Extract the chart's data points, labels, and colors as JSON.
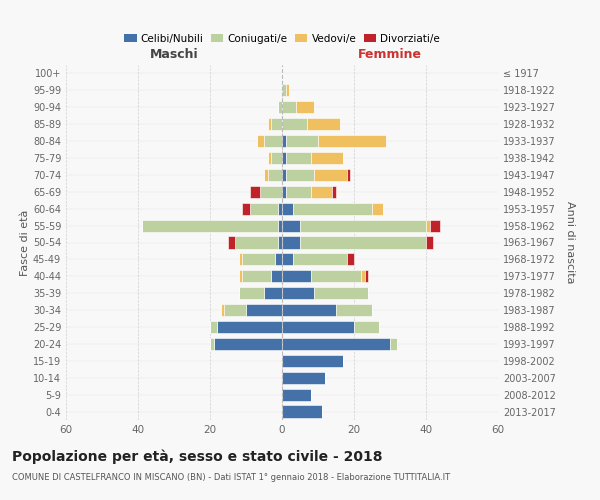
{
  "age_groups": [
    "0-4",
    "5-9",
    "10-14",
    "15-19",
    "20-24",
    "25-29",
    "30-34",
    "35-39",
    "40-44",
    "45-49",
    "50-54",
    "55-59",
    "60-64",
    "65-69",
    "70-74",
    "75-79",
    "80-84",
    "85-89",
    "90-94",
    "95-99",
    "100+"
  ],
  "birth_years": [
    "2013-2017",
    "2008-2012",
    "2003-2007",
    "1998-2002",
    "1993-1997",
    "1988-1992",
    "1983-1987",
    "1978-1982",
    "1973-1977",
    "1968-1972",
    "1963-1967",
    "1958-1962",
    "1953-1957",
    "1948-1952",
    "1943-1947",
    "1938-1942",
    "1933-1937",
    "1928-1932",
    "1923-1927",
    "1918-1922",
    "≤ 1917"
  ],
  "colors": {
    "celibi": "#4472a8",
    "coniugati": "#bdd0a0",
    "vedovi": "#f0c060",
    "divorziati": "#c0222a"
  },
  "males": {
    "celibi": [
      0,
      0,
      0,
      0,
      19,
      18,
      10,
      5,
      3,
      2,
      1,
      1,
      1,
      0,
      0,
      0,
      0,
      0,
      0,
      0,
      0
    ],
    "coniugati": [
      0,
      0,
      0,
      0,
      1,
      2,
      6,
      7,
      8,
      9,
      12,
      38,
      8,
      6,
      4,
      3,
      5,
      3,
      1,
      0,
      0
    ],
    "vedovi": [
      0,
      0,
      0,
      0,
      0,
      0,
      1,
      0,
      1,
      1,
      0,
      0,
      0,
      0,
      1,
      1,
      2,
      1,
      0,
      0,
      0
    ],
    "divorziati": [
      0,
      0,
      0,
      0,
      0,
      0,
      0,
      0,
      0,
      0,
      2,
      0,
      2,
      3,
      0,
      0,
      0,
      0,
      0,
      0,
      0
    ]
  },
  "females": {
    "nubili": [
      11,
      8,
      12,
      17,
      30,
      20,
      15,
      9,
      8,
      3,
      5,
      5,
      3,
      1,
      1,
      1,
      1,
      0,
      0,
      0,
      0
    ],
    "coniugate": [
      0,
      0,
      0,
      0,
      2,
      7,
      10,
      15,
      14,
      15,
      35,
      35,
      22,
      7,
      8,
      7,
      9,
      7,
      4,
      1,
      0
    ],
    "vedove": [
      0,
      0,
      0,
      0,
      0,
      0,
      0,
      0,
      1,
      0,
      0,
      1,
      3,
      6,
      9,
      9,
      19,
      9,
      5,
      1,
      0
    ],
    "divorziate": [
      0,
      0,
      0,
      0,
      0,
      0,
      0,
      0,
      1,
      2,
      2,
      3,
      0,
      1,
      1,
      0,
      0,
      0,
      0,
      0,
      0
    ]
  },
  "title": "Popolazione per età, sesso e stato civile - 2018",
  "subtitle": "COMUNE DI CASTELFRANCO IN MISCANO (BN) - Dati ISTAT 1° gennaio 2018 - Elaborazione TUTTITALIA.IT",
  "label_maschi": "Maschi",
  "label_femmine": "Femmine",
  "ylabel_left": "Fasce di età",
  "ylabel_right": "Anni di nascita",
  "xlim": 60,
  "xticks": [
    -60,
    -40,
    -20,
    0,
    20,
    40,
    60
  ],
  "legend_labels": [
    "Celibi/Nubili",
    "Coniugati/e",
    "Vedovi/e",
    "Divorziati/e"
  ],
  "background_color": "#f8f8f8",
  "grid_color": "#cccccc"
}
